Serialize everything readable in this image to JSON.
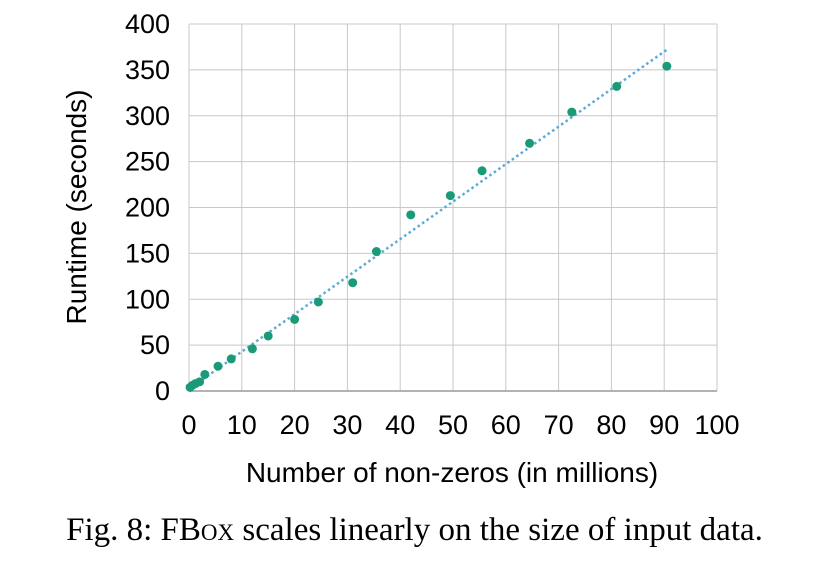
{
  "chart_data": {
    "type": "scatter",
    "xlabel": "Number of non-zeros (in millions)",
    "ylabel": "Runtime (seconds)",
    "xlim": [
      0,
      100
    ],
    "ylim": [
      0,
      400
    ],
    "x_ticks": [
      "0",
      "10",
      "20",
      "30",
      "40",
      "50",
      "60",
      "70",
      "80",
      "90",
      "100"
    ],
    "y_ticks": [
      "0",
      "50",
      "100",
      "150",
      "200",
      "250",
      "300",
      "350",
      "400"
    ],
    "grid": true,
    "legend": "none",
    "series": [
      {
        "color": "#1a9a76",
        "points": [
          {
            "x": 0.2,
            "y": 4
          },
          {
            "x": 0.6,
            "y": 6
          },
          {
            "x": 1.2,
            "y": 8
          },
          {
            "x": 2.0,
            "y": 10
          },
          {
            "x": 3.0,
            "y": 18
          },
          {
            "x": 5.5,
            "y": 27
          },
          {
            "x": 8.0,
            "y": 35
          },
          {
            "x": 12.0,
            "y": 46
          },
          {
            "x": 15.0,
            "y": 60
          },
          {
            "x": 20.0,
            "y": 78
          },
          {
            "x": 24.5,
            "y": 97
          },
          {
            "x": 31.0,
            "y": 118
          },
          {
            "x": 35.5,
            "y": 152
          },
          {
            "x": 42.0,
            "y": 192
          },
          {
            "x": 49.5,
            "y": 213
          },
          {
            "x": 55.5,
            "y": 240
          },
          {
            "x": 64.5,
            "y": 270
          },
          {
            "x": 72.5,
            "y": 304
          },
          {
            "x": 81.0,
            "y": 332
          },
          {
            "x": 90.5,
            "y": 354
          }
        ]
      }
    ],
    "trendline": {
      "style": "dotted",
      "color": "#5aaad8",
      "from": {
        "x": 0,
        "y": 2
      },
      "to": {
        "x": 90.5,
        "y": 372
      }
    }
  },
  "caption": {
    "prefix": "Fig. 8: ",
    "name": "FBox",
    "rest": " scales linearly on the size of input data."
  }
}
